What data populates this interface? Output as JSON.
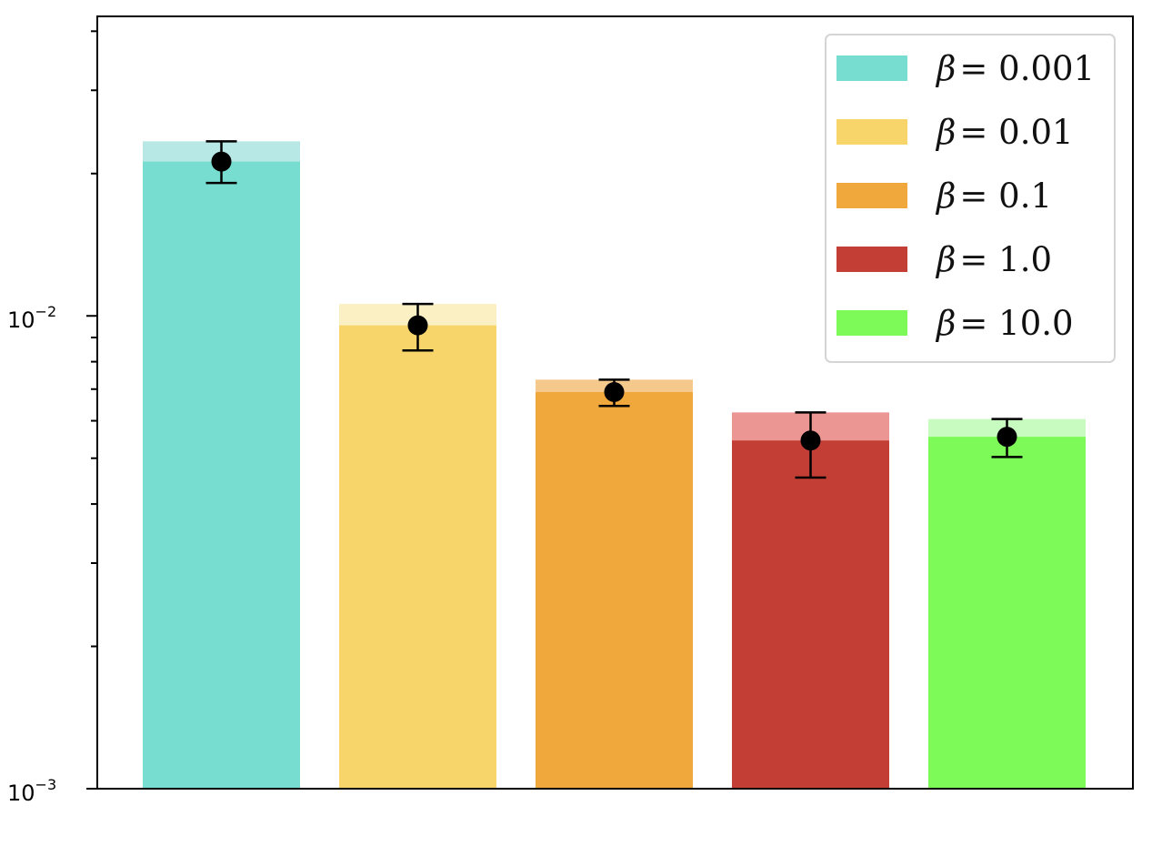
{
  "chart_data": {
    "type": "bar",
    "title": "",
    "xlabel": "",
    "ylabel": "",
    "yscale": "log",
    "ylim": [
      0.001,
      0.043
    ],
    "grid": false,
    "legend_placement": "top-right",
    "y_ticks": [
      {
        "value": 0.01,
        "base": "10",
        "exponent": "−2"
      },
      {
        "value": 0.001,
        "base": "10",
        "exponent": "−3"
      }
    ],
    "series": [
      {
        "name": "β = 0.001",
        "symbol": "β",
        "label": "= 0.001",
        "color": "#76ddd0",
        "light_color": "#b8e8e6",
        "mean": 0.0212,
        "bar_top": 0.0234,
        "err_low": 0.0191,
        "err_high": 0.0234
      },
      {
        "name": "β = 0.01",
        "symbol": "β",
        "label": "= 0.01",
        "color": "#f7d56a",
        "light_color": "#faf0c3",
        "mean": 0.00955,
        "bar_top": 0.0106,
        "err_low": 0.00845,
        "err_high": 0.0106
      },
      {
        "name": "β = 0.1",
        "symbol": "β",
        "label": "= 0.1",
        "color": "#f0a83c",
        "light_color": "#f5c98c",
        "mean": 0.0069,
        "bar_top": 0.00733,
        "err_low": 0.00645,
        "err_high": 0.00733
      },
      {
        "name": "β = 1.0",
        "symbol": "β",
        "label": "= 1.0",
        "color": "#c33f36",
        "light_color": "#eb9693",
        "mean": 0.00545,
        "bar_top": 0.00625,
        "err_low": 0.00455,
        "err_high": 0.00625
      },
      {
        "name": "β = 10.0",
        "symbol": "β",
        "label": "= 10.0",
        "color": "#7efa58",
        "light_color": "#c8fbbf",
        "mean": 0.00555,
        "bar_top": 0.00605,
        "err_low": 0.00503,
        "err_high": 0.00605
      }
    ]
  }
}
